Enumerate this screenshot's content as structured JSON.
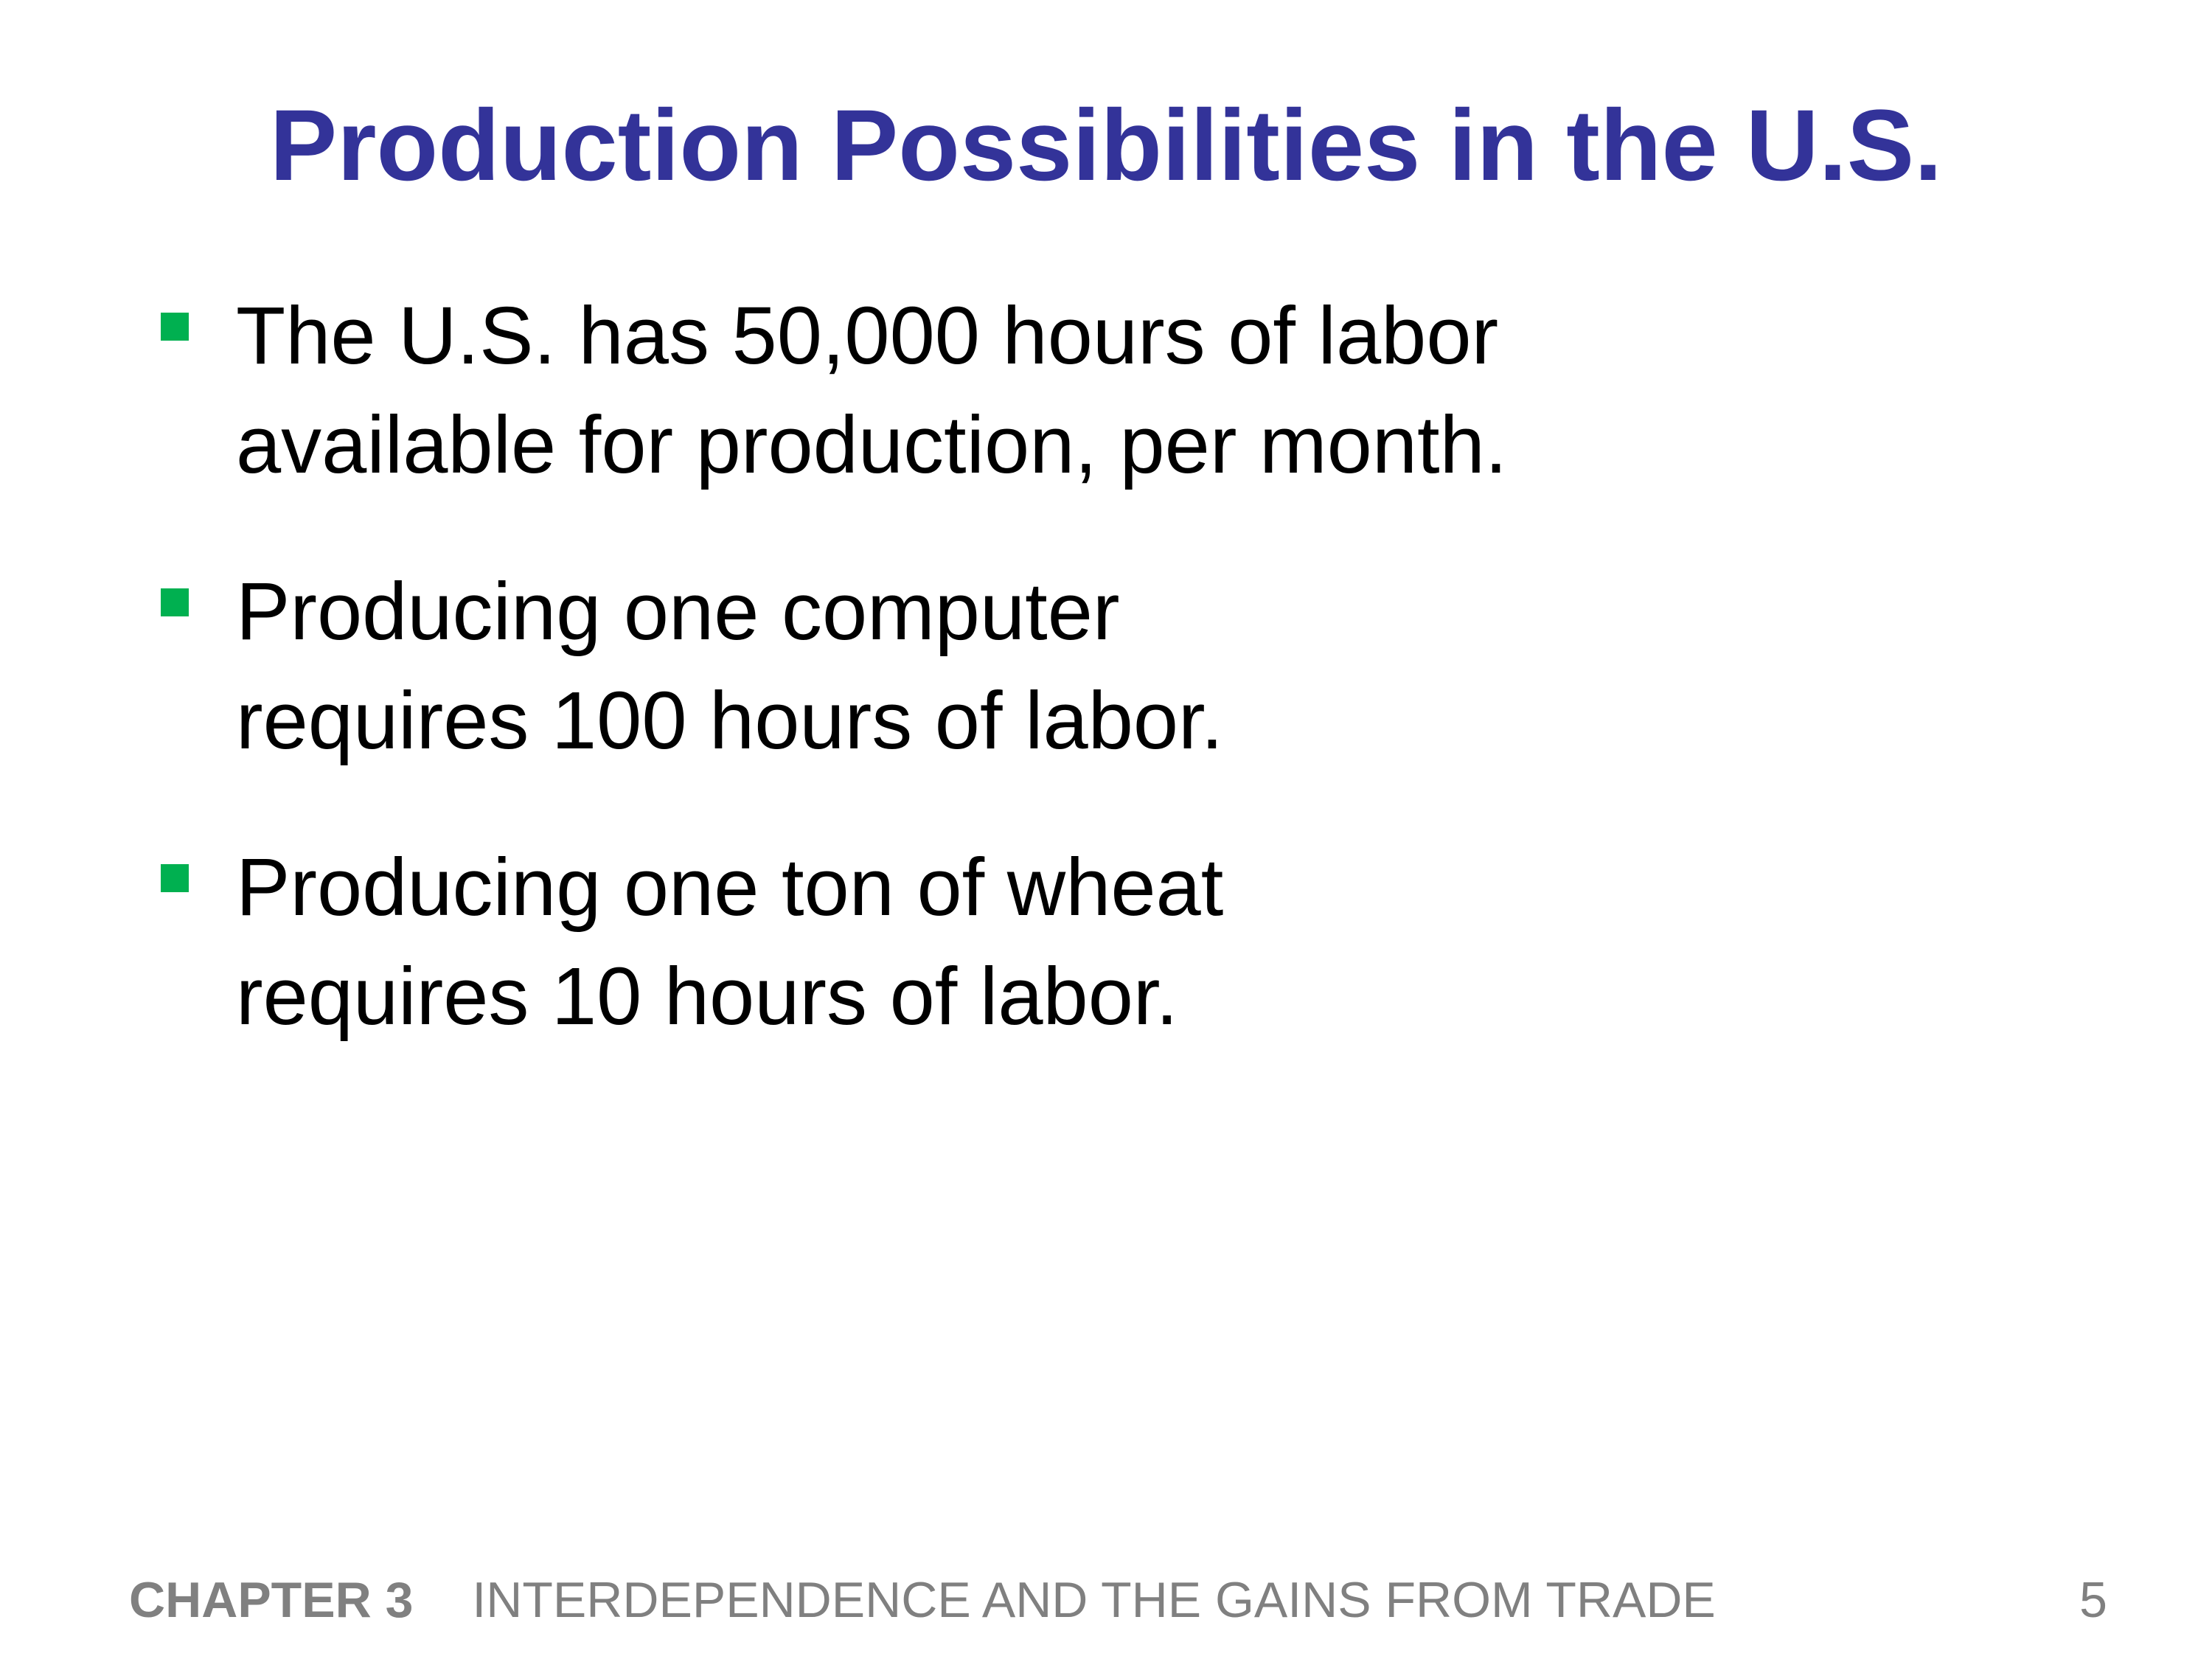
{
  "slide": {
    "title": "Production Possibilities in the U.S.",
    "bullets": [
      {
        "lines": [
          "The U.S. has 50,000 hours of labor",
          "available for production, per month."
        ]
      },
      {
        "lines": [
          "Producing one computer",
          "requires 100 hours of labor."
        ]
      },
      {
        "lines": [
          "Producing one ton of wheat",
          "requires 10 hours of labor."
        ]
      }
    ],
    "footer": {
      "chapter": "CHAPTER 3",
      "chapter_title": "INTERDEPENDENCE AND THE GAINS FROM TRADE",
      "page_number": "5"
    }
  },
  "colors": {
    "title": "#333399",
    "bullet_marker": "#00b050",
    "body_text": "#000000",
    "footer_text": "#808080",
    "background": "#ffffff"
  },
  "icons": {
    "bullet": "square-bullet-icon"
  }
}
